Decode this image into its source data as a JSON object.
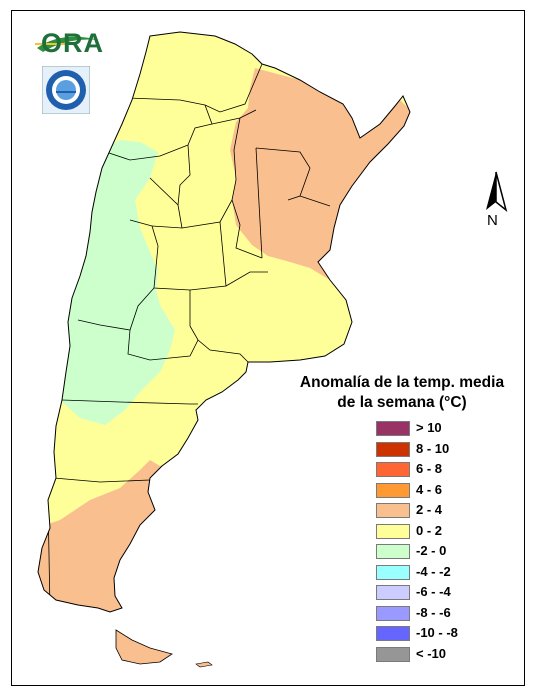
{
  "legend": {
    "title_line1": "Anomalía de la temp. media",
    "title_line2": "de la semana (°C)",
    "items": [
      {
        "label": "> 10",
        "color": "#993366"
      },
      {
        "label": "8 - 10",
        "color": "#cc3300"
      },
      {
        "label": "6 - 8",
        "color": "#ff6633"
      },
      {
        "label": "4 - 6",
        "color": "#ff9933"
      },
      {
        "label": "2 - 4",
        "color": "#fabf8f"
      },
      {
        "label": "0 - 2",
        "color": "#ffff99"
      },
      {
        "label": "-2 - 0",
        "color": "#ccffcc"
      },
      {
        "label": "-4 - -2",
        "color": "#99ffff"
      },
      {
        "label": "-6 - -4",
        "color": "#ccccff"
      },
      {
        "label": "-8 - -6",
        "color": "#9999ff"
      },
      {
        "label": "-10 - -8",
        "color": "#6666ff"
      },
      {
        "label": "< -10",
        "color": "#969696"
      }
    ]
  },
  "logos": {
    "ora_text": "ORA"
  },
  "north_arrow": {
    "label": "N"
  },
  "map": {
    "icon": "argentina-map",
    "fill_colors": {
      "warm": "#fabf8f",
      "neutral": "#ffff99",
      "cool": "#ccffcc"
    }
  }
}
